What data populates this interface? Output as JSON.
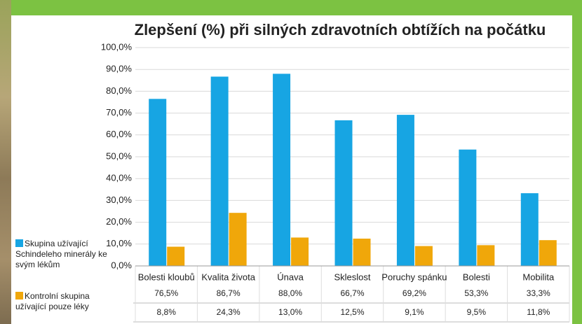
{
  "chart_data": {
    "type": "bar",
    "title": "Zlepšení (%) při silných zdravotních obtížích na počátku",
    "categories": [
      "Bolesti kloubů",
      "Kvalita života",
      "Únava",
      "Skleslost",
      "Poruchy spánku",
      "Bolesti",
      "Mobilita"
    ],
    "series": [
      {
        "name": "Skupina užívající Schindeleho minerály ke svým lékům",
        "color": "#17a5e3",
        "values": [
          76.5,
          86.7,
          88.0,
          66.7,
          69.2,
          53.3,
          33.3
        ],
        "value_labels": [
          "76,5%",
          "86,7%",
          "88,0%",
          "66,7%",
          "69,2%",
          "53,3%",
          "33,3%"
        ]
      },
      {
        "name": "Kontrolní skupina užívající pouze léky",
        "color": "#f0a70a",
        "values": [
          8.8,
          24.3,
          13.0,
          12.5,
          9.1,
          9.5,
          11.8
        ],
        "value_labels": [
          "8,8%",
          "24,3%",
          "13,0%",
          "12,5%",
          "9,1%",
          "9,5%",
          "11,8%"
        ]
      }
    ],
    "ylim": [
      0,
      100
    ],
    "yticks": [
      {
        "value": 0,
        "label": "0,0%"
      },
      {
        "value": 10,
        "label": "10,0%"
      },
      {
        "value": 20,
        "label": "20,0%"
      },
      {
        "value": 30,
        "label": "30,0%"
      },
      {
        "value": 40,
        "label": "40,0%"
      },
      {
        "value": 50,
        "label": "50,0%"
      },
      {
        "value": 60,
        "label": "60,0%"
      },
      {
        "value": 70,
        "label": "70,0%"
      },
      {
        "value": 80,
        "label": "80,0%"
      },
      {
        "value": 90,
        "label": "90,0%"
      },
      {
        "value": 100,
        "label": "100,0%"
      }
    ],
    "grid": true
  }
}
